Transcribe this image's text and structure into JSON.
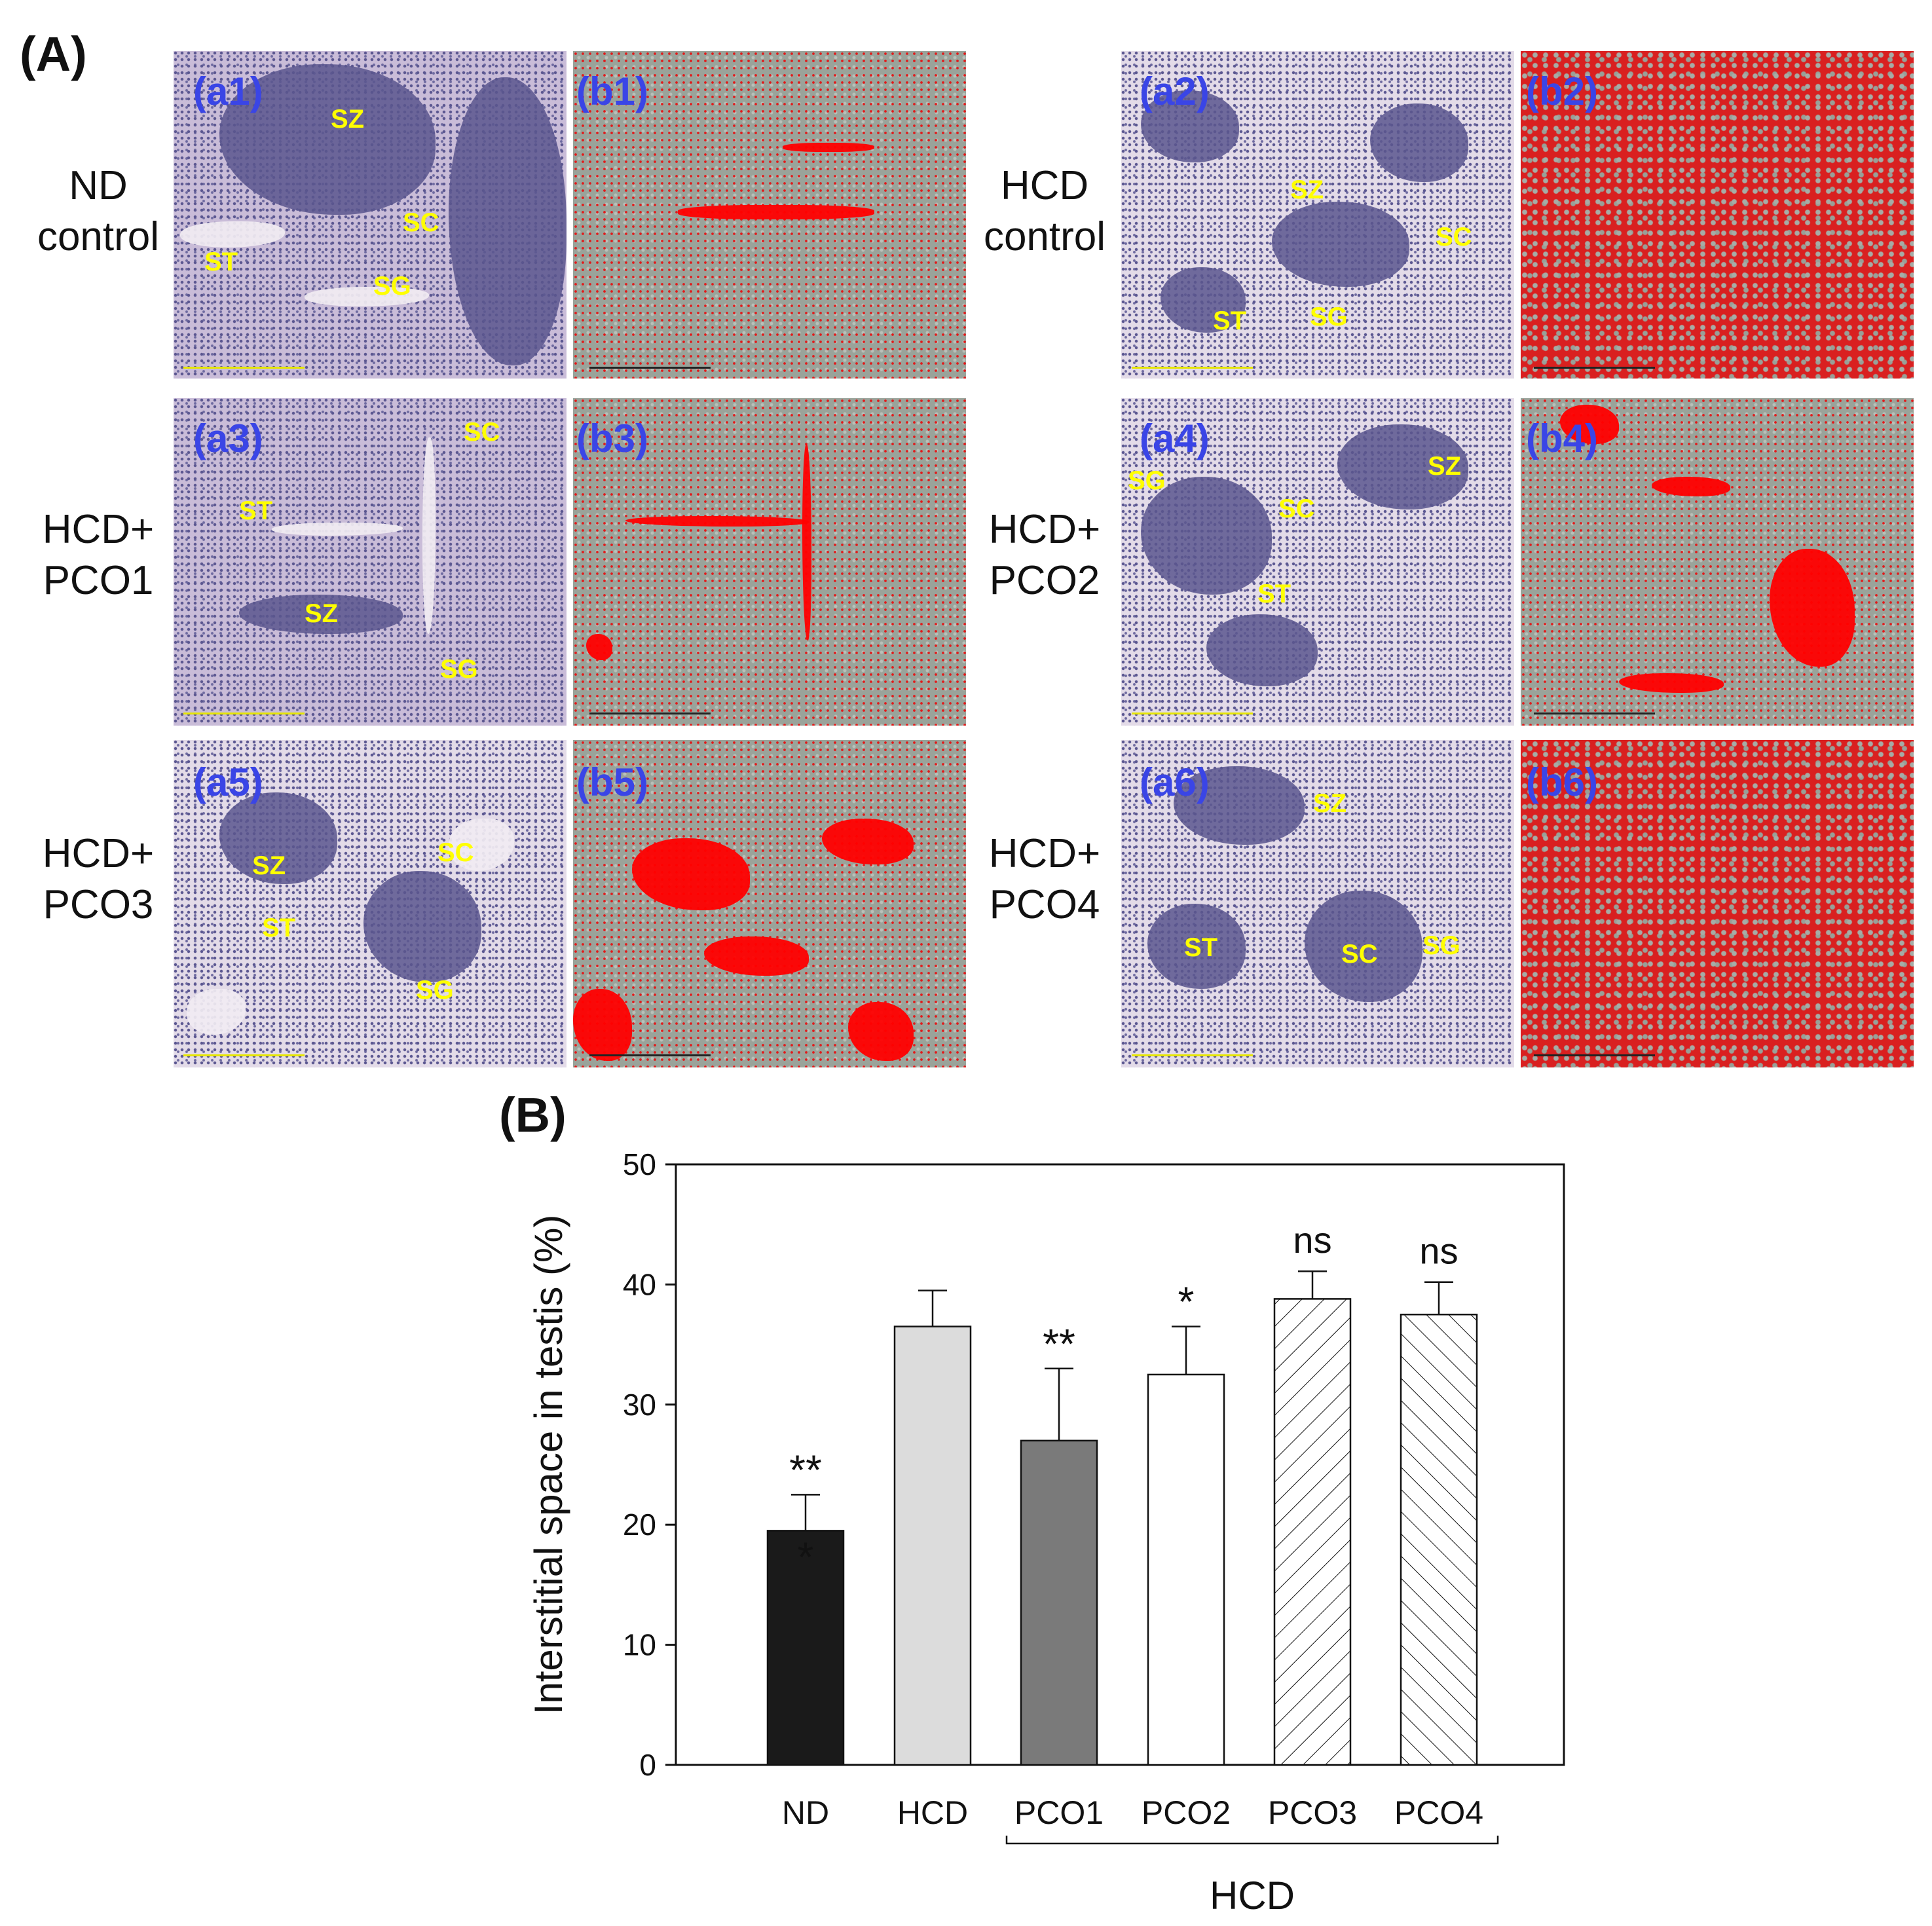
{
  "panelA": {
    "letter": "(A)",
    "groups": [
      {
        "id": "nd",
        "label": "ND\ncontrol",
        "he_label": "(a1)",
        "an_label": "(b1)",
        "cells": [
          "SZ",
          "SC",
          "ST",
          "SG"
        ]
      },
      {
        "id": "hcd",
        "label": "HCD\ncontrol",
        "he_label": "(a2)",
        "an_label": "(b2)",
        "cells": [
          "SZ",
          "SC",
          "ST",
          "SG"
        ]
      },
      {
        "id": "pco1",
        "label": "HCD+\nPCO1",
        "he_label": "(a3)",
        "an_label": "(b3)",
        "cells": [
          "SC",
          "ST",
          "SZ",
          "SG"
        ]
      },
      {
        "id": "pco2",
        "label": "HCD+\nPCO2",
        "he_label": "(a4)",
        "an_label": "(b4)",
        "cells": [
          "SZ",
          "SG",
          "SC",
          "ST"
        ]
      },
      {
        "id": "pco3",
        "label": "HCD+\nPCO3",
        "he_label": "(a5)",
        "an_label": "(b5)",
        "cells": [
          "SZ",
          "SC",
          "ST",
          "SG"
        ]
      },
      {
        "id": "pco4",
        "label": "HCD+\nPCO4",
        "he_label": "(a6)",
        "an_label": "(b6)",
        "cells": [
          "SZ",
          "ST",
          "SC",
          "SG"
        ]
      }
    ],
    "colors": {
      "sublabel": "#3a45e6",
      "cell_label": "#ffff00",
      "highlight": "#ff0000"
    }
  },
  "panelB": {
    "letter": "(B)",
    "group_bracket_label": "HCD"
  },
  "chart_data": {
    "type": "bar",
    "title": "",
    "xlabel": "",
    "ylabel": "Interstitial space in testis (%)",
    "ylim": [
      0,
      50
    ],
    "yticks": [
      0,
      10,
      20,
      30,
      40,
      50
    ],
    "ytick_labels": [
      "0",
      "10",
      "20",
      "30",
      "40",
      "50"
    ],
    "categories": [
      "ND",
      "HCD",
      "PCO1",
      "PCO2",
      "PCO3",
      "PCO4"
    ],
    "values": [
      19.5,
      36.5,
      27.0,
      32.5,
      38.8,
      37.5
    ],
    "errors": [
      3.0,
      3.0,
      6.0,
      4.0,
      2.3,
      2.7
    ],
    "significance": [
      "***",
      "",
      "**",
      "*",
      "ns",
      "ns"
    ],
    "fills": [
      "#1a1a1a",
      "#dcdcdc",
      "#7a7a7a",
      "#ffffff",
      "hatch-forward",
      "hatch-back"
    ],
    "grid": false,
    "legend": "none"
  }
}
